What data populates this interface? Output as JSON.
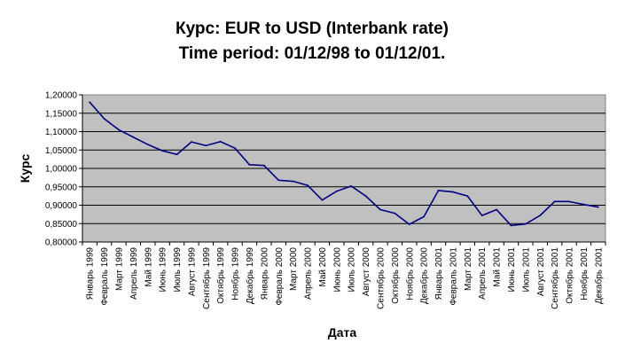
{
  "chart_data": {
    "type": "line",
    "title": "Курс: EUR to USD (Interbank rate)",
    "subtitle": "Time period: 01/12/98 to 01/12/01.",
    "xlabel": "Дата",
    "ylabel": "Курс",
    "ylim": [
      0.8,
      1.2
    ],
    "y_ticks": [
      "0,80000",
      "0,85000",
      "0,90000",
      "0,95000",
      "1,00000",
      "1,05000",
      "1,10000",
      "1,15000",
      "1,20000"
    ],
    "grid": true,
    "legend": "none",
    "colors": {
      "plot_area": "#c0c0c0",
      "line": "#000080",
      "gridline": "#000000"
    },
    "categories": [
      "Январь 1999",
      "Февраль 1999",
      "Март 1999",
      "Апрель 1999",
      "Май 1999",
      "Июнь 1999",
      "Июль 1999",
      "Август 1999",
      "Сентябрь 1999",
      "Октябрь 1999",
      "Ноябрь 1999",
      "Декабрь 1999",
      "Январь 2000",
      "Февраль 2000",
      "Март 2000",
      "Апрель 2000",
      "Май 2000",
      "Июнь 2000",
      "Июль 2000",
      "Август 2000",
      "Сентябрь 2000",
      "Октябрь 2000",
      "Ноябрь 2000",
      "Декабрь 2000",
      "Январь 2001",
      "Февраль 2001",
      "Март 2001",
      "Апрель 2001",
      "Май 2001",
      "Июнь 2001",
      "Июль 2001",
      "Август 2001",
      "Сентябрь 2001",
      "Октябрь 2001",
      "Ноябрь 2001",
      "Декабрь 2001"
    ],
    "series": [
      {
        "values": [
          1.18,
          1.135,
          1.105,
          1.085,
          1.065,
          1.048,
          1.038,
          1.072,
          1.062,
          1.073,
          1.055,
          1.01,
          1.008,
          0.968,
          0.965,
          0.954,
          0.914,
          0.938,
          0.952,
          0.925,
          0.888,
          0.878,
          0.848,
          0.869,
          0.94,
          0.936,
          0.925,
          0.872,
          0.888,
          0.845,
          0.849,
          0.872,
          0.91,
          0.91,
          0.902,
          0.895
        ]
      }
    ]
  }
}
